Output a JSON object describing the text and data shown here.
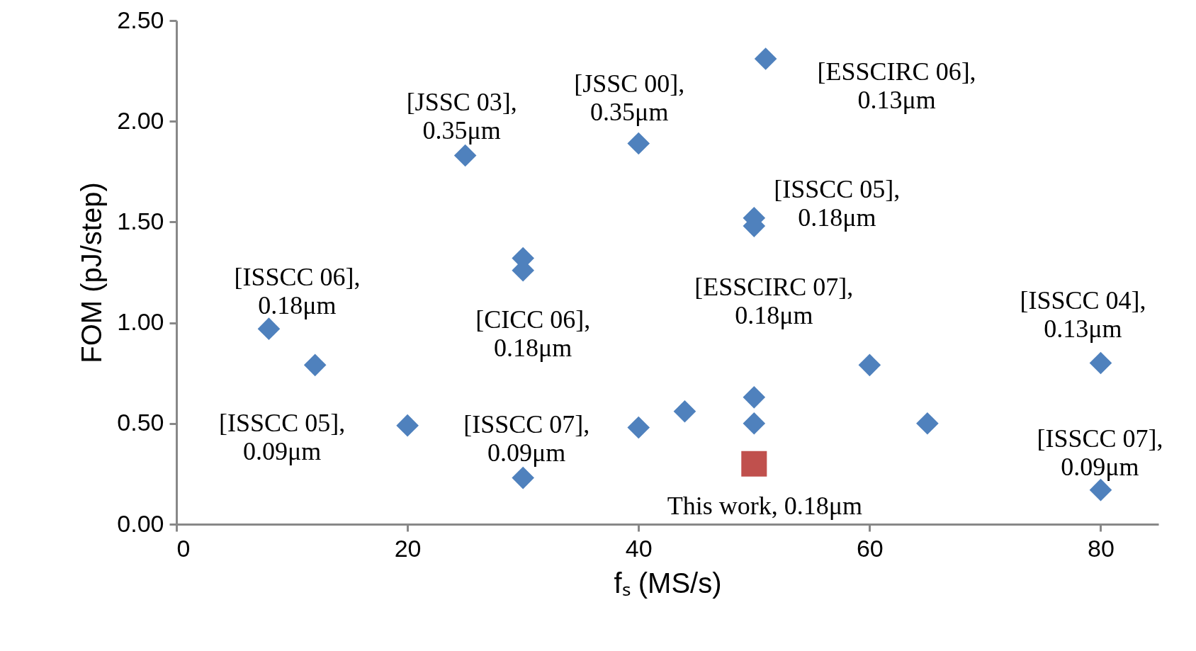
{
  "chart_data": {
    "type": "scatter",
    "xlabel": "fₛ (MS/s)",
    "ylabel": "FOM (pJ/step)",
    "xlim": [
      0,
      85
    ],
    "xticks": [
      0,
      20,
      40,
      60,
      80
    ],
    "ylim": [
      0,
      2.5
    ],
    "yticks": [
      {
        "value": 0,
        "label": "0.00"
      },
      {
        "value": 0.5,
        "label": "0.50"
      },
      {
        "value": 1,
        "label": "1.00"
      },
      {
        "value": 1.5,
        "label": "1.50"
      },
      {
        "value": 2,
        "label": "2.00"
      },
      {
        "value": 2.5,
        "label": "2.50"
      }
    ],
    "grid": false,
    "series": [
      {
        "color": "#4f81bd",
        "marker": "diamond",
        "x": [
          8,
          12,
          20,
          25,
          30,
          30,
          30,
          40,
          40,
          44,
          51,
          50,
          50,
          50,
          50,
          60,
          65,
          80,
          80
        ],
        "values": [
          0.97,
          0.79,
          0.49,
          1.83,
          1.32,
          1.26,
          0.23,
          1.89,
          0.48,
          0.56,
          2.31,
          1.52,
          1.48,
          0.63,
          0.5,
          0.79,
          0.5,
          0.8,
          0.17
        ]
      },
      {
        "color": "#c0504d",
        "marker": "square",
        "x": [
          50
        ],
        "values": [
          0.3
        ]
      }
    ],
    "annotations": [
      {
        "text": "[JSSC 03],\n0.35μm",
        "x": 25,
        "y": 1.83
      },
      {
        "text": "[JSSC 00],\n0.35μm",
        "x": 40,
        "y": 1.89
      },
      {
        "text": "[ESSCIRC 06],\n0.13μm",
        "x": 51,
        "y": 2.31
      },
      {
        "text": "[ISSCC 06],\n0.18μm",
        "x": 8,
        "y": 0.97
      },
      {
        "text": "[CICC 06],\n0.18μm",
        "x": 30,
        "y": 1.26
      },
      {
        "text": "[ISSCC 05],\n0.18μm",
        "x": 50,
        "y": 1.52
      },
      {
        "text": "[ESSCIRC 07],\n0.18μm",
        "x": 50,
        "y": 0.63
      },
      {
        "text": "[ISSCC 04],\n0.13μm",
        "x": 80,
        "y": 0.8
      },
      {
        "text": "[ISSCC 05],\n0.09μm",
        "x": 20,
        "y": 0.49
      },
      {
        "text": "[ISSCC 07],\n0.09μm",
        "x": 30,
        "y": 0.23
      },
      {
        "text": "[ISSCC 07],\n0.09μm",
        "x": 80,
        "y": 0.17
      },
      {
        "text": "This work, 0.18μm",
        "x": 50,
        "y": 0.3
      }
    ]
  }
}
